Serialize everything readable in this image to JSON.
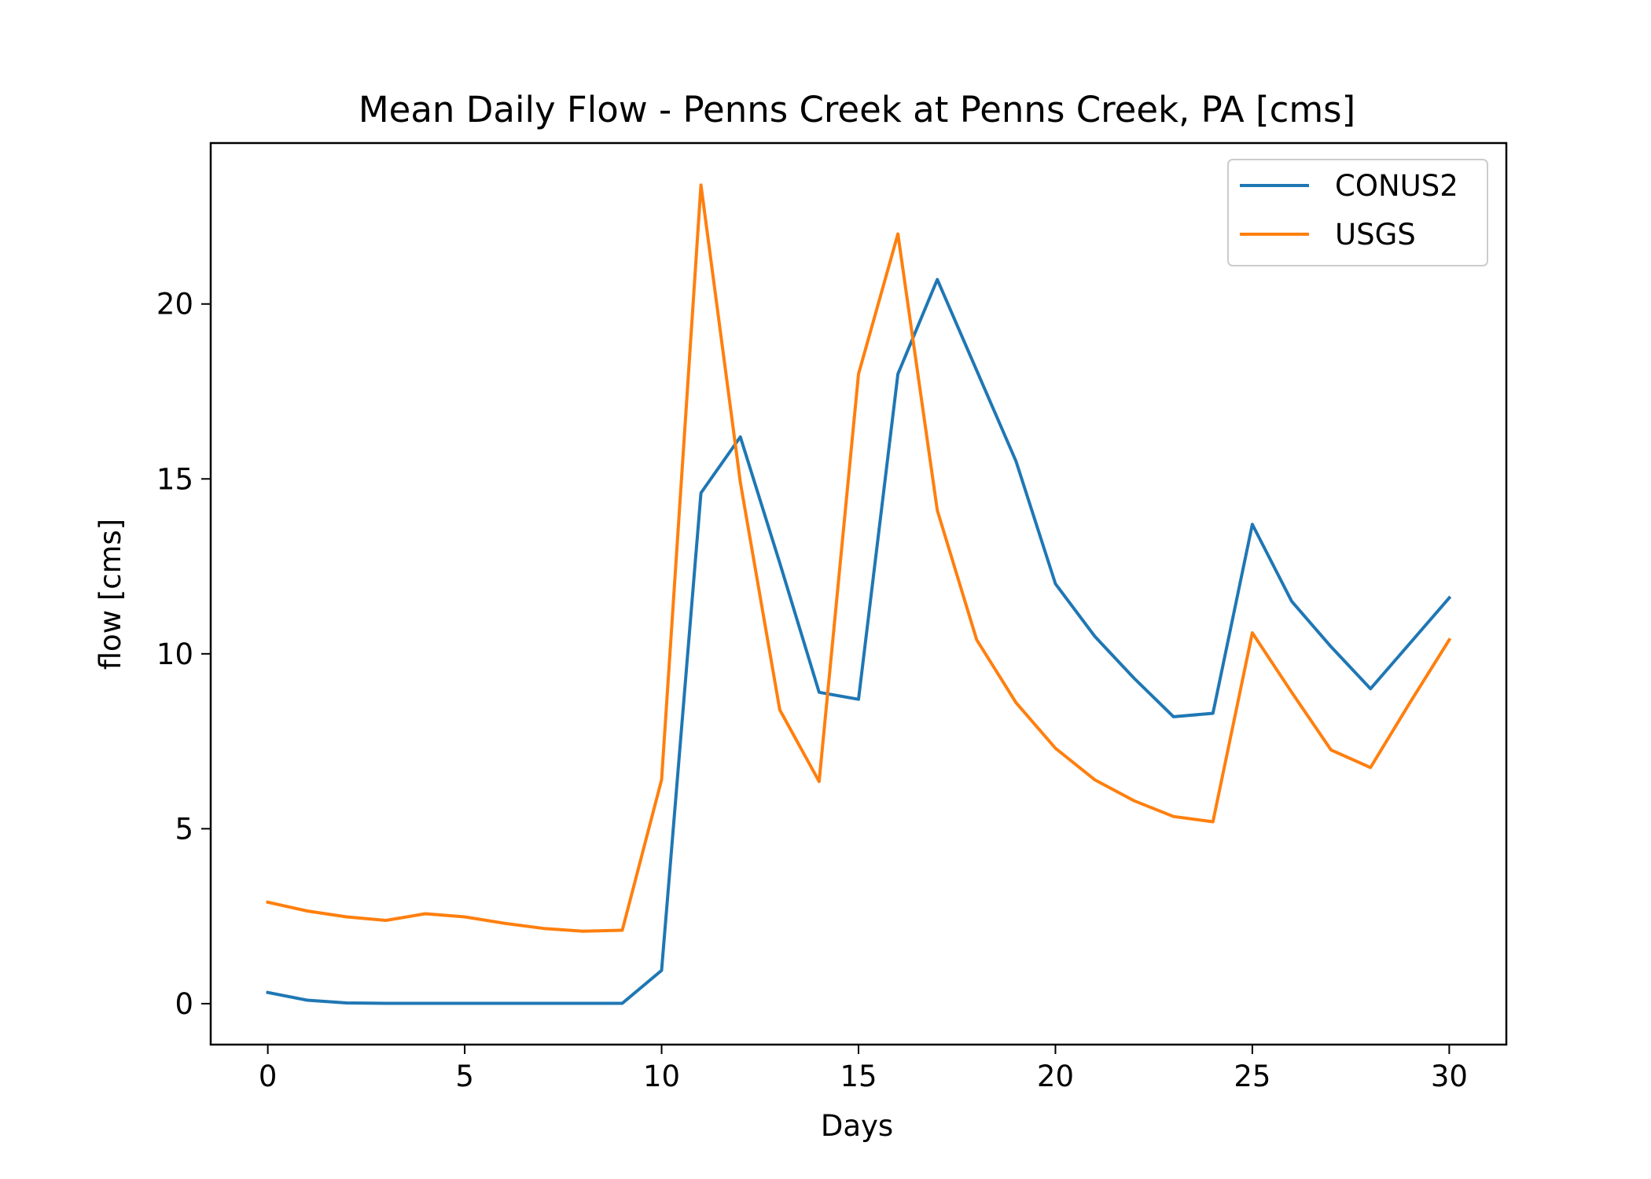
{
  "chart_data": {
    "type": "line",
    "title": "Mean Daily Flow - Penns Creek at Penns Creek, PA [cms]",
    "xlabel": "Days",
    "ylabel": "flow [cms]",
    "xlim": [
      -1.45,
      31.45
    ],
    "ylim": [
      -1.17,
      24.6
    ],
    "xticks": [
      0,
      5,
      10,
      15,
      20,
      25,
      30
    ],
    "yticks": [
      0,
      5,
      10,
      15,
      20
    ],
    "grid": false,
    "legend_position": "upper right",
    "x": [
      0,
      1,
      2,
      3,
      4,
      5,
      6,
      7,
      8,
      9,
      10,
      11,
      12,
      13,
      14,
      15,
      16,
      17,
      18,
      19,
      20,
      21,
      22,
      23,
      24,
      25,
      26,
      27,
      28,
      29,
      30
    ],
    "series": [
      {
        "name": "CONUS2",
        "color": "#1f77b4",
        "values": [
          0.32,
          0.1,
          0.02,
          0.01,
          0.01,
          0.01,
          0.01,
          0.01,
          0.01,
          0.01,
          0.95,
          14.6,
          16.2,
          12.6,
          8.9,
          8.7,
          18.0,
          20.7,
          18.1,
          15.5,
          12.0,
          10.5,
          9.3,
          8.2,
          8.3,
          13.7,
          11.5,
          10.2,
          9.0,
          10.3,
          11.6
        ]
      },
      {
        "name": "USGS",
        "color": "#ff7f0e",
        "values": [
          2.9,
          2.65,
          2.48,
          2.38,
          2.57,
          2.48,
          2.3,
          2.15,
          2.07,
          2.1,
          6.4,
          23.4,
          14.9,
          8.4,
          6.35,
          18.0,
          22.0,
          14.1,
          10.4,
          8.6,
          7.3,
          6.4,
          5.8,
          5.35,
          5.2,
          10.6,
          8.9,
          7.25,
          6.75,
          8.6,
          10.4
        ]
      }
    ]
  }
}
